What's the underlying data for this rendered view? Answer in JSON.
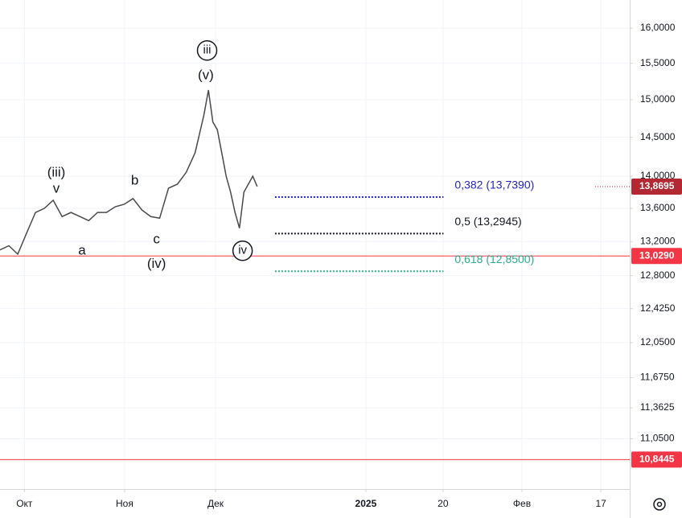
{
  "chart_data": {
    "type": "line",
    "log_scale": true,
    "grid": true,
    "xlim": [
      0,
      142
    ],
    "ylim": [
      10.56,
      16.41
    ],
    "xticks": [
      {
        "value": 5.5,
        "label": "Окт"
      },
      {
        "value": 28.1,
        "label": "Ноя"
      },
      {
        "value": 48.6,
        "label": "Дек"
      },
      {
        "value": 82.5,
        "label": "2025"
      },
      {
        "value": 99.9,
        "label": "20"
      },
      {
        "value": 117.7,
        "label": "Фев"
      },
      {
        "value": 135.5,
        "label": "17"
      }
    ],
    "yticks": [
      {
        "value": 16,
        "label": "16,0000"
      },
      {
        "value": 15.5,
        "label": "15,5000"
      },
      {
        "value": 15,
        "label": "15,0000"
      },
      {
        "value": 14.5,
        "label": "14,5000"
      },
      {
        "value": 14,
        "label": "14,0000"
      },
      {
        "value": 13.6,
        "label": "13,6000"
      },
      {
        "value": 13.2,
        "label": "13,2000"
      },
      {
        "value": 12.8,
        "label": "12,8000"
      },
      {
        "value": 12.425,
        "label": "12,4250"
      },
      {
        "value": 12.05,
        "label": "12,0500"
      },
      {
        "value": 11.675,
        "label": "11,6750"
      },
      {
        "value": 11.3625,
        "label": "11,3625"
      },
      {
        "value": 11.05,
        "label": "11,0500"
      }
    ],
    "series": [
      {
        "color": "#4a4a4a",
        "x": [
          0,
          2,
          4,
          6,
          8,
          10,
          12,
          14,
          16,
          18,
          20,
          22,
          24,
          26,
          28,
          30,
          32,
          34,
          36,
          38,
          40,
          42,
          44,
          46,
          47,
          48,
          49,
          50,
          51,
          52,
          53,
          54,
          55,
          56,
          57,
          58
        ],
        "values": [
          13.1,
          13.15,
          13.05,
          13.3,
          13.55,
          13.6,
          13.7,
          13.5,
          13.55,
          13.5,
          13.45,
          13.55,
          13.55,
          13.62,
          13.65,
          13.72,
          13.58,
          13.5,
          13.48,
          13.85,
          13.9,
          14.05,
          14.3,
          14.8,
          15.13,
          14.7,
          14.6,
          14.3,
          14.0,
          13.8,
          13.55,
          13.36,
          13.8,
          13.9,
          14.0,
          13.87
        ]
      }
    ],
    "hlines": [
      {
        "value": 13.029,
        "label": "13,0290",
        "color": "#f23645"
      },
      {
        "value": 10.8445,
        "label": "10,8445",
        "color": "#f23645"
      }
    ],
    "last_price": {
      "value": 13.8695,
      "label": "13,8695",
      "color": "#b22833"
    },
    "fib_levels": {
      "x_range": [
        62,
        100
      ],
      "levels": [
        {
          "value": 13.739,
          "label": "0,382 (13,7390)",
          "color": "#2323c8"
        },
        {
          "value": 13.2945,
          "label": "0,5 (13,2945)",
          "color": "#131722"
        },
        {
          "value": 12.85,
          "label": "0,618 (12,8500)",
          "color": "#26b08a"
        }
      ]
    },
    "annotations": [
      {
        "text": "iii",
        "x": 46.7,
        "y": 15.68,
        "circled": true
      },
      {
        "text": "(v)",
        "x": 46.4,
        "y": 15.33,
        "circled": false
      },
      {
        "text": "(iii)",
        "x": 12.7,
        "y": 14.04,
        "circled": false
      },
      {
        "text": "v",
        "x": 12.7,
        "y": 13.84,
        "circled": false
      },
      {
        "text": "b",
        "x": 30.4,
        "y": 13.94,
        "circled": false
      },
      {
        "text": "a",
        "x": 18.5,
        "y": 13.09,
        "circled": false
      },
      {
        "text": "c",
        "x": 35.3,
        "y": 13.22,
        "circled": false
      },
      {
        "text": "(iv)",
        "x": 35.3,
        "y": 12.93,
        "circled": false
      },
      {
        "text": "iv",
        "x": 54.7,
        "y": 13.09,
        "circled": true
      }
    ]
  }
}
